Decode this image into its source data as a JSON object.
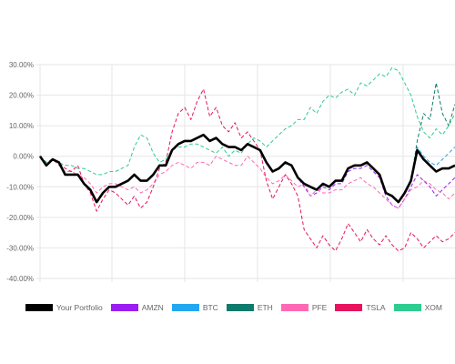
{
  "chart_data": {
    "type": "line",
    "ylim": [
      -40,
      30
    ],
    "yticks": [
      "30.00%",
      "20.00%",
      "10.00%",
      "0.00%",
      "-10.00%",
      "-20.00%",
      "-30.00%",
      "-40.00%"
    ],
    "grid": true,
    "legend_position": "bottom",
    "series": [
      {
        "name": "Your Portfolio",
        "color": "#000000",
        "dashed": false,
        "values": [
          0,
          -3,
          -1,
          -2,
          -6,
          -6,
          -6,
          -9,
          -11,
          -15,
          -12,
          -10,
          -10,
          -9,
          -8,
          -6,
          -8,
          -8,
          -6,
          -3,
          -3,
          2,
          4,
          5,
          5,
          6,
          7,
          5,
          6,
          4,
          3,
          3,
          2,
          4,
          3,
          2,
          -2,
          -5,
          -4,
          -2,
          -3,
          -7,
          -9,
          -10,
          -11,
          -9,
          -10,
          -8,
          -8,
          -4,
          -3,
          -3,
          -2,
          -4,
          -6,
          -12,
          -13,
          -15,
          -12,
          -8,
          2,
          -1,
          -3,
          -5,
          -4,
          -4,
          -3
        ]
      },
      {
        "name": "AMZN",
        "color": "#9b1df2",
        "dashed": true,
        "values": [
          0,
          -3,
          -1,
          -2,
          -6,
          -6,
          -6,
          -9,
          -11,
          -15,
          -12,
          -10,
          -10,
          -9,
          -8,
          -6,
          -8,
          -8,
          -6,
          -3,
          -3,
          2,
          4,
          5,
          5,
          6,
          7,
          5,
          6,
          4,
          3,
          3,
          2,
          4,
          3,
          2,
          -2,
          -5,
          -4,
          -2,
          -3,
          -7,
          -10,
          -13,
          -12,
          -10,
          -11,
          -9,
          -9,
          -5,
          -4,
          -4,
          -3,
          -5,
          -7,
          -13,
          -16,
          -17,
          -14,
          -10,
          -6,
          -8,
          -10,
          -13,
          -11,
          -9,
          -7
        ]
      },
      {
        "name": "BTC",
        "color": "#22a7f0",
        "dashed": true,
        "values": [
          0,
          -3,
          -1,
          -2,
          -6,
          -6,
          -6,
          -9,
          -11,
          -15,
          -12,
          -10,
          -10,
          -9,
          -8,
          -6,
          -8,
          -8,
          -6,
          -3,
          -3,
          2,
          4,
          5,
          5,
          6,
          7,
          5,
          6,
          4,
          3,
          3,
          2,
          4,
          3,
          2,
          -2,
          -5,
          -4,
          -2,
          -3,
          -7,
          -9,
          -10,
          -11,
          -9,
          -10,
          -8,
          -8,
          -4,
          -3,
          -3,
          -2,
          -4,
          -6,
          -12,
          -13,
          -15,
          -12,
          -8,
          3,
          0,
          -2,
          -3,
          -1,
          1,
          3
        ]
      },
      {
        "name": "ETH",
        "color": "#0f7b6c",
        "dashed": true,
        "values": [
          0,
          -3,
          -1,
          -2,
          -6,
          -6,
          -6,
          -9,
          -11,
          -15,
          -12,
          -10,
          -10,
          -9,
          -8,
          -6,
          -8,
          -8,
          -6,
          -3,
          -3,
          2,
          4,
          5,
          5,
          6,
          7,
          5,
          6,
          4,
          3,
          3,
          2,
          4,
          3,
          2,
          -2,
          -5,
          -4,
          -2,
          -3,
          -7,
          -9,
          -10,
          -11,
          -9,
          -10,
          -8,
          -8,
          -4,
          -3,
          -3,
          -2,
          -4,
          -6,
          -12,
          -13,
          -15,
          -12,
          -8,
          5,
          14,
          12,
          24,
          14,
          10,
          17
        ]
      },
      {
        "name": "PFE",
        "color": "#ff69b4",
        "dashed": true,
        "values": [
          0,
          -2,
          -1,
          -3,
          -5,
          -5,
          -6,
          -7,
          -9,
          -12,
          -10,
          -9,
          -9,
          -10,
          -11,
          -10,
          -12,
          -11,
          -9,
          -6,
          -5,
          -3,
          -2,
          -3,
          -4,
          -2,
          -2,
          -3,
          0,
          -1,
          -2,
          -3,
          -3,
          0,
          -2,
          -4,
          -7,
          -9,
          -8,
          -6,
          -8,
          -10,
          -9,
          -13,
          -11,
          -12,
          -12,
          -11,
          -11,
          -9,
          -8,
          -7,
          -9,
          -10,
          -12,
          -14,
          -16,
          -17,
          -14,
          -11,
          -10,
          -8,
          -9,
          -11,
          -12,
          -14,
          -12
        ]
      },
      {
        "name": "TSLA",
        "color": "#e8135d",
        "dashed": true,
        "values": [
          0,
          -2,
          -1,
          -2,
          -4,
          -5,
          -3,
          -9,
          -12,
          -18,
          -14,
          -11,
          -12,
          -14,
          -16,
          -13,
          -17,
          -15,
          -10,
          -4,
          -2,
          8,
          14,
          16,
          12,
          18,
          22,
          13,
          16,
          10,
          8,
          11,
          6,
          8,
          5,
          2,
          -8,
          -14,
          -10,
          -6,
          -9,
          -13,
          -24,
          -27,
          -30,
          -26,
          -29,
          -31,
          -27,
          -22,
          -25,
          -28,
          -24,
          -27,
          -29,
          -26,
          -29,
          -31,
          -30,
          -25,
          -27,
          -30,
          -28,
          -26,
          -28,
          -27,
          -25
        ]
      },
      {
        "name": "XOM",
        "color": "#2ecc8f",
        "dashed": true,
        "values": [
          0,
          -2,
          -1,
          -2,
          -3,
          -3,
          -4,
          -4,
          -5,
          -6,
          -6,
          -5,
          -5,
          -4,
          -3,
          3,
          7,
          6,
          1,
          -2,
          -1,
          2,
          3,
          3,
          4,
          4,
          3,
          2,
          1,
          3,
          0,
          2,
          1,
          4,
          6,
          5,
          3,
          5,
          7,
          9,
          10,
          12,
          12,
          16,
          14,
          18,
          20,
          19,
          21,
          22,
          20,
          24,
          23,
          25,
          27,
          26,
          29,
          28,
          24,
          20,
          13,
          8,
          6,
          9,
          7,
          10,
          14
        ]
      }
    ]
  }
}
